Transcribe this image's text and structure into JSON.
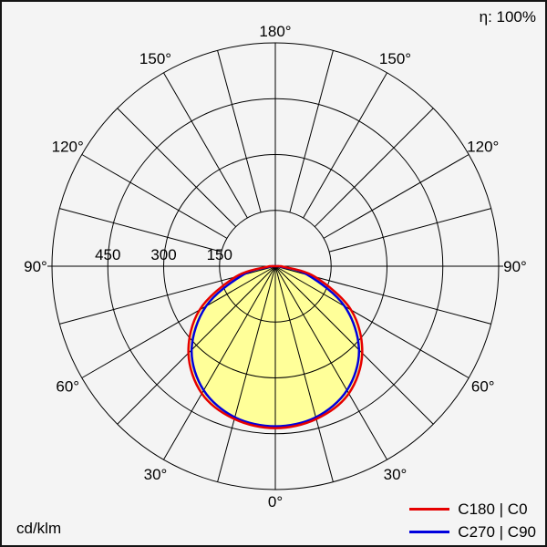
{
  "header": {
    "efficiency_label": "η: 100%"
  },
  "footer": {
    "unit_label": "cd/klm"
  },
  "legend": {
    "items": [
      {
        "label": "C180 | C0",
        "color": "#e60000"
      },
      {
        "label": "C270 | C90",
        "color": "#0000dd"
      }
    ]
  },
  "chart_data": {
    "type": "polar",
    "unit": "cd/klm",
    "efficiency_percent": 100,
    "angle_ticks_deg": [
      0,
      30,
      60,
      90,
      120,
      150,
      180
    ],
    "angle_tick_labels": [
      "0°",
      "30°",
      "60°",
      "90°",
      "120°",
      "150°",
      "180°"
    ],
    "grid_step_deg": 15,
    "radial_ticks": [
      150,
      300,
      450,
      600
    ],
    "radial_tick_labels": [
      "150",
      "300",
      "450"
    ],
    "radial_max": 600,
    "fill_color": "#ffff99",
    "series": [
      {
        "name": "C180 | C0",
        "color": "#e60000",
        "gamma_deg": [
          0,
          15,
          30,
          45,
          60,
          75,
          90
        ],
        "values": [
          435,
          425,
          395,
          330,
          235,
          110,
          15
        ]
      },
      {
        "name": "C270 | C90",
        "color": "#0000dd",
        "gamma_deg": [
          0,
          15,
          30,
          45,
          60,
          75,
          90
        ],
        "values": [
          430,
          420,
          385,
          318,
          215,
          90,
          8
        ]
      }
    ]
  }
}
